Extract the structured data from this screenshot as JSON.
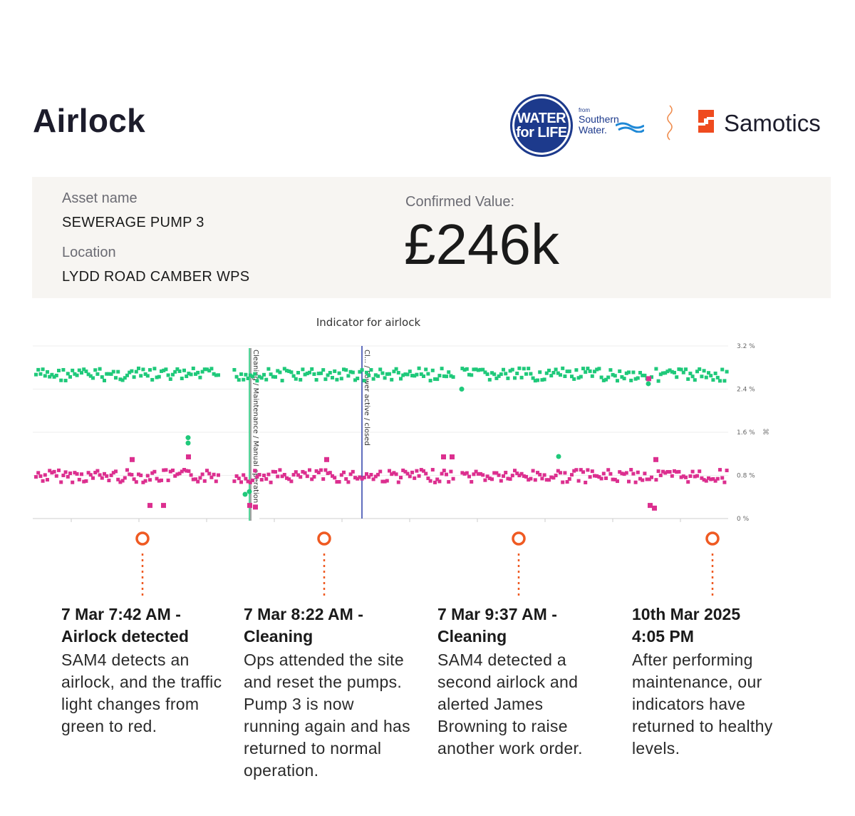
{
  "page": {
    "title": "Airlock"
  },
  "logos": {
    "water_for_life": [
      "WATER",
      "for LIFE"
    ],
    "southern_water": {
      "from": "from",
      "line1": "Southern",
      "line2": "Water."
    },
    "samotics": "Samotics"
  },
  "asset": {
    "name_label": "Asset name",
    "name_value": "SEWERAGE PUMP 3",
    "location_label": "Location",
    "location_value": "LYDD ROAD CAMBER WPS",
    "value_label": "Confirmed Value:",
    "value_amount": "£246k"
  },
  "colors": {
    "green_series": "#1fc97a",
    "pink_series": "#dc2f8f",
    "event_line": "#2c3ea8",
    "marker": "#ef5a22",
    "card_bg": "#f7f5f2"
  },
  "chart_data": {
    "type": "scatter",
    "title": "Indicator for airlock",
    "y_ticks": [
      "3.2 %",
      "2.4 %",
      "1.6 %",
      "0.8 %",
      "0 %"
    ],
    "ylim": [
      0,
      3.2
    ],
    "grid": true,
    "series": [
      {
        "color": "#1fc97a",
        "approx_level": 2.7,
        "outliers": [
          2.4,
          1.5,
          1.4,
          2.5
        ]
      },
      {
        "color": "#dc2f8f",
        "approx_level": 0.82,
        "outliers": [
          1.1,
          0.25,
          0.25,
          1.15,
          0.2
        ]
      }
    ],
    "vertical_annotations": [
      {
        "label": "Cleaning / Maintenance / Manual operation",
        "color": "#1fc97a"
      },
      {
        "label": "Cl... / Power active / closed",
        "color": "#2c3ea8"
      }
    ]
  },
  "events": [
    {
      "title": "7 Mar 7:42 AM -\nAirlock detected",
      "body": "SAM4 detects an airlock, and the traffic light changes from green to red."
    },
    {
      "title": "7 Mar 8:22 AM -\nCleaning",
      "body": "Ops attended the site and reset the pumps. Pump 3 is now running again and has returned to normal operation."
    },
    {
      "title": "7 Mar 9:37 AM -\nCleaning",
      "body": "SAM4 detected a second airlock and alerted James Browning to raise another work order."
    },
    {
      "title": "10th Mar 2025\n4:05 PM",
      "body": "After performing maintenance, our indicators have returned to healthy levels."
    }
  ]
}
